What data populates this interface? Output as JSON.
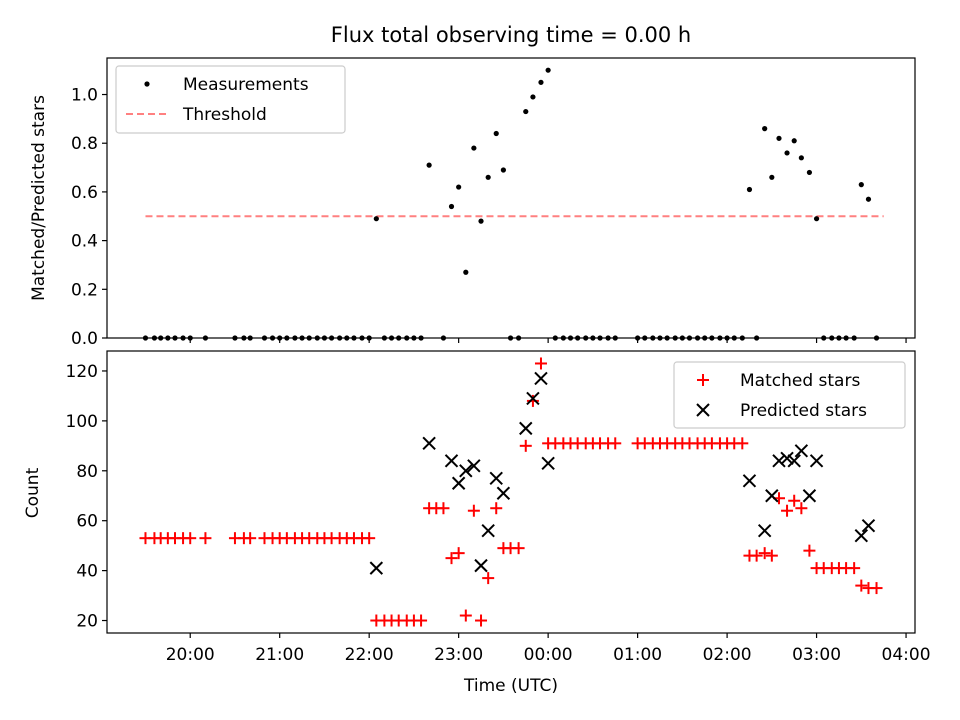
{
  "chart_data": [
    {
      "type": "scatter",
      "title": "Flux total observing time = 0.00 h",
      "xlabel": "",
      "ylabel": "Matched/Predicted stars",
      "xlim_hours": [
        19.07,
        28.1
      ],
      "ylim": [
        0,
        1.15
      ],
      "yticks": [
        0.0,
        0.2,
        0.4,
        0.6,
        0.8,
        1.0
      ],
      "ytick_labels": [
        "0.0",
        "0.2",
        "0.4",
        "0.6",
        "0.8",
        "1.0"
      ],
      "legend": {
        "placement": "upper-left",
        "entries": [
          "Measurements",
          "Threshold"
        ]
      },
      "series": [
        {
          "name": "Measurements",
          "color": "#000000",
          "marker": "dot",
          "x": [
            19.5,
            19.6,
            19.67,
            19.75,
            19.83,
            19.92,
            20.0,
            20.17,
            20.5,
            20.6,
            20.67,
            20.83,
            20.92,
            21.0,
            21.08,
            21.17,
            21.25,
            21.33,
            21.42,
            21.5,
            21.58,
            21.67,
            21.75,
            21.83,
            21.92,
            22.0,
            22.08,
            22.17,
            22.25,
            22.33,
            22.42,
            22.5,
            22.58,
            22.67,
            22.83,
            22.92,
            23.0,
            23.08,
            23.17,
            23.25,
            23.33,
            23.42,
            23.5,
            23.58,
            23.67,
            23.75,
            23.83,
            23.92,
            24.0,
            24.08,
            24.17,
            24.25,
            24.33,
            24.42,
            24.5,
            24.58,
            24.67,
            24.75,
            25.0,
            25.08,
            25.17,
            25.25,
            25.33,
            25.42,
            25.5,
            25.58,
            25.67,
            25.75,
            25.83,
            25.92,
            26.0,
            26.08,
            26.17,
            26.25,
            26.33,
            26.42,
            26.5,
            26.58,
            26.67,
            26.75,
            26.83,
            26.92,
            27.0,
            27.08,
            27.17,
            27.25,
            27.33,
            27.42,
            27.5,
            27.58,
            27.67
          ],
          "y": [
            0,
            0,
            0,
            0,
            0,
            0,
            0,
            0,
            0,
            0,
            0,
            0,
            0,
            0,
            0,
            0,
            0,
            0,
            0,
            0,
            0,
            0,
            0,
            0,
            0,
            0,
            0.49,
            0,
            0,
            0,
            0,
            0,
            0,
            0.71,
            0,
            0.54,
            0.62,
            0.27,
            0.78,
            0.48,
            0.66,
            0.84,
            0.69,
            0,
            0,
            0.93,
            0.99,
            1.05,
            1.1,
            0,
            0,
            0,
            0,
            0,
            0,
            0,
            0,
            0,
            0,
            0,
            0,
            0,
            0,
            0,
            0,
            0,
            0,
            0,
            0,
            0,
            0,
            0,
            0,
            0.61,
            0,
            0.86,
            0.66,
            0.82,
            0.76,
            0.81,
            0.74,
            0.68,
            0.49,
            0,
            0,
            0,
            0,
            0,
            0.63,
            0.57,
            0
          ]
        },
        {
          "name": "Threshold",
          "color": "#ff8080",
          "linestyle": "dashed",
          "x": [
            19.5,
            27.75
          ],
          "y": [
            0.5,
            0.5
          ]
        }
      ]
    },
    {
      "type": "scatter",
      "title": "",
      "xlabel": "Time (UTC)",
      "ylabel": "Count",
      "xlim_hours": [
        19.07,
        28.1
      ],
      "ylim": [
        15,
        128
      ],
      "yticks": [
        20,
        40,
        60,
        80,
        100,
        120
      ],
      "ytick_labels": [
        "20",
        "40",
        "60",
        "80",
        "100",
        "120"
      ],
      "xticks_hours": [
        20,
        21,
        22,
        23,
        24,
        25,
        26,
        27,
        28
      ],
      "xtick_labels": [
        "20:00",
        "21:00",
        "22:00",
        "23:00",
        "00:00",
        "01:00",
        "02:00",
        "03:00",
        "04:00"
      ],
      "legend": {
        "placement": "upper-right",
        "entries": [
          "Matched stars",
          "Predicted stars"
        ]
      },
      "series": [
        {
          "name": "Matched stars",
          "color": "#ff0000",
          "marker": "plus",
          "x": [
            19.5,
            19.6,
            19.67,
            19.75,
            19.83,
            19.92,
            20.0,
            20.17,
            20.5,
            20.6,
            20.67,
            20.83,
            20.92,
            21.0,
            21.08,
            21.17,
            21.25,
            21.33,
            21.42,
            21.5,
            21.58,
            21.67,
            21.75,
            21.83,
            21.92,
            22.0,
            22.08,
            22.17,
            22.25,
            22.33,
            22.42,
            22.5,
            22.58,
            22.67,
            22.75,
            22.83,
            22.92,
            23.0,
            23.08,
            23.17,
            23.25,
            23.33,
            23.42,
            23.5,
            23.58,
            23.67,
            23.75,
            23.83,
            23.92,
            24.0,
            24.08,
            24.17,
            24.25,
            24.33,
            24.42,
            24.5,
            24.58,
            24.67,
            24.75,
            25.0,
            25.08,
            25.17,
            25.25,
            25.33,
            25.42,
            25.5,
            25.58,
            25.67,
            25.75,
            25.83,
            25.92,
            26.0,
            26.08,
            26.17,
            26.25,
            26.33,
            26.42,
            26.5,
            26.58,
            26.67,
            26.75,
            26.83,
            26.92,
            27.0,
            27.08,
            27.17,
            27.25,
            27.33,
            27.42,
            27.5,
            27.58,
            27.67
          ],
          "y": [
            53,
            53,
            53,
            53,
            53,
            53,
            53,
            53,
            53,
            53,
            53,
            53,
            53,
            53,
            53,
            53,
            53,
            53,
            53,
            53,
            53,
            53,
            53,
            53,
            53,
            53,
            20,
            20,
            20,
            20,
            20,
            20,
            20,
            65,
            65,
            65,
            45,
            47,
            22,
            64,
            20,
            37,
            65,
            49,
            49,
            49,
            90,
            108,
            123,
            91,
            91,
            91,
            91,
            91,
            91,
            91,
            91,
            91,
            91,
            91,
            91,
            91,
            91,
            91,
            91,
            91,
            91,
            91,
            91,
            91,
            91,
            91,
            91,
            91,
            46,
            46,
            47,
            46,
            69,
            64,
            68,
            65,
            48,
            41,
            41,
            41,
            41,
            41,
            41,
            34,
            33,
            33
          ]
        },
        {
          "name": "Predicted stars",
          "color": "#000000",
          "marker": "x",
          "x": [
            22.08,
            22.67,
            22.92,
            23.0,
            23.08,
            23.17,
            23.25,
            23.33,
            23.42,
            23.5,
            23.75,
            23.83,
            23.92,
            24.0,
            26.25,
            26.42,
            26.5,
            26.58,
            26.67,
            26.75,
            26.83,
            26.92,
            27.0,
            27.5,
            27.58
          ],
          "y": [
            41,
            91,
            84,
            75,
            80,
            82,
            42,
            56,
            77,
            71,
            97,
            109,
            117,
            83,
            76,
            56,
            70,
            84,
            85,
            84,
            88,
            70,
            84,
            54,
            58
          ]
        }
      ]
    }
  ]
}
